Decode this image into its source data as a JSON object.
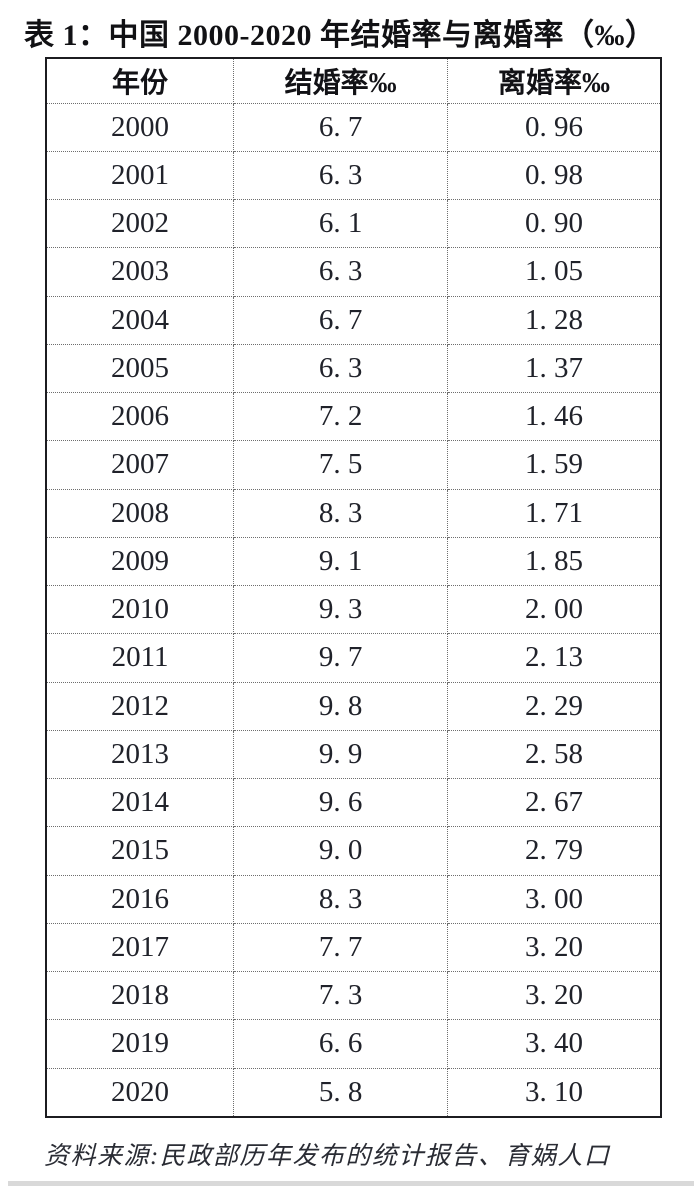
{
  "title": "表 1：中国 2000-2020 年结婚率与离婚率（‰）",
  "table": {
    "columns": [
      "年份",
      "结婚率‰",
      "离婚率‰"
    ],
    "rows": [
      [
        "2000",
        "6. 7",
        "0. 96"
      ],
      [
        "2001",
        "6. 3",
        "0. 98"
      ],
      [
        "2002",
        "6. 1",
        "0. 90"
      ],
      [
        "2003",
        "6. 3",
        "1. 05"
      ],
      [
        "2004",
        "6. 7",
        "1. 28"
      ],
      [
        "2005",
        "6. 3",
        "1. 37"
      ],
      [
        "2006",
        "7. 2",
        "1. 46"
      ],
      [
        "2007",
        "7. 5",
        "1. 59"
      ],
      [
        "2008",
        "8. 3",
        "1. 71"
      ],
      [
        "2009",
        "9. 1",
        "1. 85"
      ],
      [
        "2010",
        "9. 3",
        "2. 00"
      ],
      [
        "2011",
        "9. 7",
        "2. 13"
      ],
      [
        "2012",
        "9. 8",
        "2. 29"
      ],
      [
        "2013",
        "9. 9",
        "2. 58"
      ],
      [
        "2014",
        "9. 6",
        "2. 67"
      ],
      [
        "2015",
        "9. 0",
        "2. 79"
      ],
      [
        "2016",
        "8. 3",
        "3. 00"
      ],
      [
        "2017",
        "7. 7",
        "3. 20"
      ],
      [
        "2018",
        "7. 3",
        "3. 20"
      ],
      [
        "2019",
        "6. 6",
        "3. 40"
      ],
      [
        "2020",
        "5. 8",
        "3. 10"
      ]
    ]
  },
  "footer": "资料来源:民政部历年发布的统计报告、育娲人口",
  "colors": {
    "text": "#20222a",
    "border_outer": "#1c1c20",
    "border_inner_dotted": "#6e6e6e",
    "background": "#ffffff"
  },
  "chart_data": {
    "type": "table",
    "title": "表 1：中国 2000-2020 年结婚率与离婚率（‰）",
    "columns": [
      "年份",
      "结婚率‰",
      "离婚率‰"
    ],
    "years": [
      2000,
      2001,
      2002,
      2003,
      2004,
      2005,
      2006,
      2007,
      2008,
      2009,
      2010,
      2011,
      2012,
      2013,
      2014,
      2015,
      2016,
      2017,
      2018,
      2019,
      2020
    ],
    "marriage_rate_permille": [
      6.7,
      6.3,
      6.1,
      6.3,
      6.7,
      6.3,
      7.2,
      7.5,
      8.3,
      9.1,
      9.3,
      9.7,
      9.8,
      9.9,
      9.6,
      9.0,
      8.3,
      7.7,
      7.3,
      6.6,
      5.8
    ],
    "divorce_rate_permille": [
      0.96,
      0.98,
      0.9,
      1.05,
      1.28,
      1.37,
      1.46,
      1.59,
      1.71,
      1.85,
      2.0,
      2.13,
      2.29,
      2.58,
      2.67,
      2.79,
      3.0,
      3.2,
      3.2,
      3.4,
      3.1
    ],
    "source_note": "资料来源:民政部历年发布的统计报告、育娲人口"
  }
}
